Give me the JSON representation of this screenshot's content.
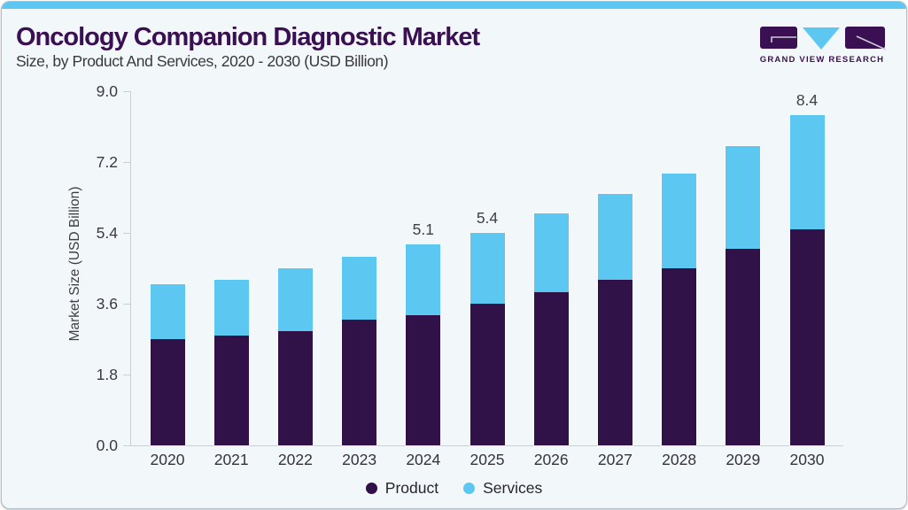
{
  "header": {
    "title": "Oncology Companion Diagnostic Market",
    "subtitle": "Size, by Product And Services, 2020 - 2030 (USD Billion)"
  },
  "logo": {
    "text": "GRAND VIEW RESEARCH",
    "mark_icons": [
      "g-block-icon",
      "v-triangle-icon",
      "r-block-icon"
    ]
  },
  "theme": {
    "accent_blue": "#5CC8F2",
    "brand_purple": "#3A1052",
    "card_background": "#F2F7FA",
    "axis_color": "#C7D0D8"
  },
  "chart_data": {
    "type": "bar",
    "stacked": true,
    "title": "Oncology Companion Diagnostic Market Size, by Product And Services, 2020 - 2030 (USD Billion)",
    "categories": [
      "2020",
      "2021",
      "2022",
      "2023",
      "2024",
      "2025",
      "2026",
      "2027",
      "2028",
      "2029",
      "2030"
    ],
    "series": [
      {
        "name": "Product",
        "color": "#311248",
        "values": [
          2.7,
          2.8,
          2.9,
          3.2,
          3.3,
          3.6,
          3.9,
          4.2,
          4.5,
          5.0,
          5.5
        ]
      },
      {
        "name": "Services",
        "color": "#5CC8F2",
        "values": [
          1.4,
          1.4,
          1.6,
          1.6,
          1.8,
          1.8,
          2.0,
          2.2,
          2.4,
          2.6,
          2.9
        ]
      }
    ],
    "totals": [
      4.1,
      4.2,
      4.5,
      4.8,
      5.1,
      5.4,
      5.9,
      6.4,
      6.9,
      7.6,
      8.4
    ],
    "total_labels": [
      "",
      "",
      "",
      "",
      "5.1",
      "5.4",
      "",
      "",
      "",
      "",
      "8.4"
    ],
    "ylabel": "Market Size (USD Billion)",
    "yticks": [
      "0.0",
      "1.8",
      "3.6",
      "5.4",
      "7.2",
      "9.0"
    ],
    "ylim": [
      0,
      9
    ],
    "grid": false,
    "legend_position": "bottom"
  }
}
